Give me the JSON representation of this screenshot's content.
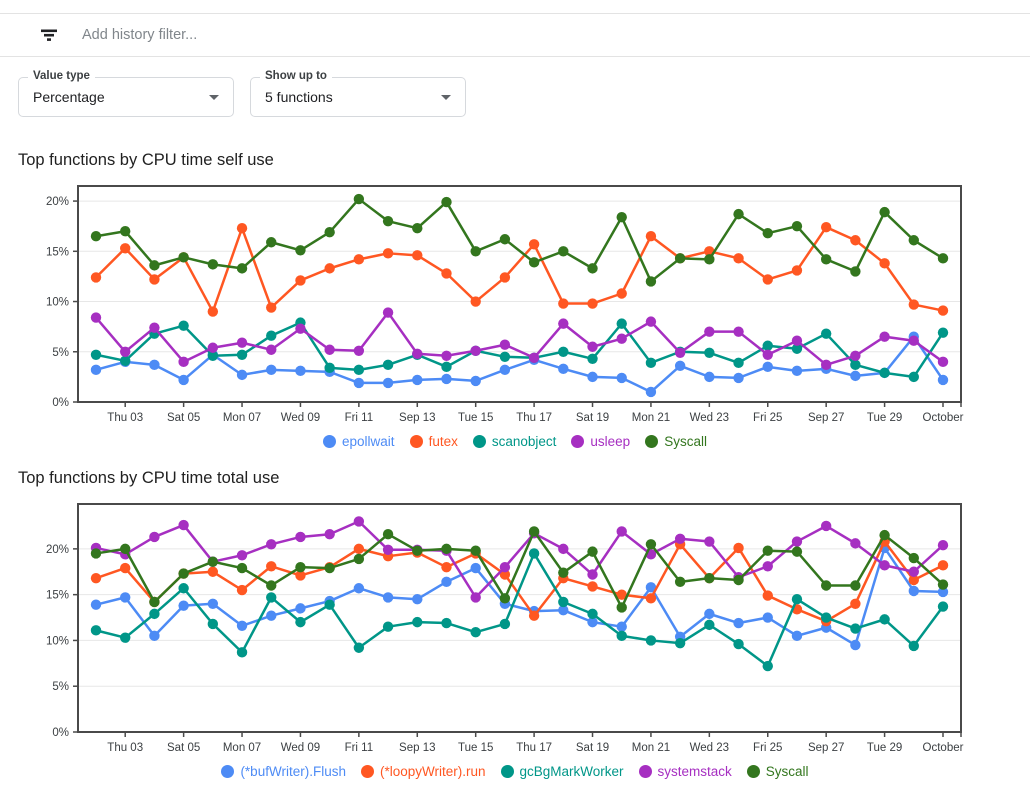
{
  "filter_bar": {
    "icon": "filter-list-icon",
    "placeholder": "Add history filter..."
  },
  "controls": {
    "value_type": {
      "label": "Value type",
      "value": "Percentage"
    },
    "show_up_to": {
      "label": "Show up to",
      "value": "5 functions"
    }
  },
  "chart_data": [
    {
      "type": "line",
      "title": "Top functions by CPU time self use",
      "x_tick_labels": [
        "Thu 03",
        "Sat 05",
        "Mon 07",
        "Wed 09",
        "Fri 11",
        "Sep 13",
        "Tue 15",
        "Thu 17",
        "Sat 19",
        "Mon 21",
        "Wed 23",
        "Fri 25",
        "Sep 27",
        "Tue 29",
        "October"
      ],
      "y_ticks": [
        0,
        5,
        10,
        15,
        20
      ],
      "y_tick_labels": [
        "0%",
        "5%",
        "10%",
        "15%",
        "20%"
      ],
      "ylim": [
        0,
        21.5
      ],
      "grid": true,
      "legend_position": "bottom",
      "series": [
        {
          "name": "epollwait",
          "color": "#4D8BF5",
          "values": [
            3.2,
            4.0,
            3.7,
            2.2,
            4.7,
            2.7,
            3.2,
            3.1,
            3.0,
            1.9,
            1.9,
            2.2,
            2.3,
            2.1,
            3.2,
            4.2,
            3.3,
            2.5,
            2.4,
            1.0,
            3.6,
            2.5,
            2.4,
            3.5,
            3.1,
            3.3,
            2.6,
            2.9,
            6.5,
            2.2
          ]
        },
        {
          "name": "futex",
          "color": "#FF5722",
          "values": [
            12.4,
            15.3,
            12.2,
            14.4,
            9.0,
            17.3,
            9.4,
            12.1,
            13.3,
            14.2,
            14.8,
            14.6,
            12.8,
            10.0,
            12.4,
            15.7,
            9.8,
            9.8,
            10.8,
            16.5,
            14.3,
            15.0,
            14.3,
            12.2,
            13.1,
            17.4,
            16.1,
            13.8,
            9.7,
            9.1
          ]
        },
        {
          "name": "scanobject",
          "color": "#009688",
          "values": [
            4.7,
            4.1,
            6.8,
            7.6,
            4.6,
            4.7,
            6.6,
            7.9,
            3.4,
            3.2,
            3.7,
            4.7,
            3.5,
            5.1,
            4.5,
            4.4,
            5.0,
            4.3,
            7.8,
            3.9,
            5.0,
            4.9,
            3.9,
            5.6,
            5.3,
            6.8,
            3.7,
            2.9,
            2.5,
            6.9
          ]
        },
        {
          "name": "usleep",
          "color": "#A62FC1",
          "values": [
            8.4,
            5.0,
            7.4,
            4.0,
            5.4,
            5.9,
            5.2,
            7.3,
            5.2,
            5.1,
            8.9,
            4.8,
            4.6,
            5.1,
            5.7,
            4.4,
            7.8,
            5.5,
            6.3,
            8.0,
            4.9,
            7.0,
            7.0,
            4.7,
            6.1,
            3.7,
            4.6,
            6.5,
            6.1,
            4.0
          ]
        },
        {
          "name": "Syscall",
          "color": "#33761E",
          "values": [
            16.5,
            17.0,
            13.6,
            14.4,
            13.7,
            13.3,
            15.9,
            15.1,
            16.9,
            20.2,
            18.0,
            17.3,
            19.9,
            15.0,
            16.2,
            13.9,
            15.0,
            13.3,
            18.4,
            12.0,
            14.3,
            14.2,
            18.7,
            16.8,
            17.5,
            14.2,
            13.0,
            18.9,
            16.1,
            14.3
          ]
        }
      ]
    },
    {
      "type": "line",
      "title": "Top functions by CPU time total use",
      "x_tick_labels": [
        "Thu 03",
        "Sat 05",
        "Mon 07",
        "Wed 09",
        "Fri 11",
        "Sep 13",
        "Tue 15",
        "Thu 17",
        "Sat 19",
        "Mon 21",
        "Wed 23",
        "Fri 25",
        "Sep 27",
        "Tue 29",
        "October"
      ],
      "y_ticks": [
        0,
        5,
        10,
        15,
        20
      ],
      "y_tick_labels": [
        "0%",
        "5%",
        "10%",
        "15%",
        "20%"
      ],
      "ylim": [
        0,
        24.9
      ],
      "grid": true,
      "legend_position": "bottom",
      "series": [
        {
          "name": "(*bufWriter).Flush",
          "color": "#4D8BF5",
          "values": [
            13.9,
            14.7,
            10.5,
            13.8,
            14.0,
            11.6,
            12.7,
            13.5,
            14.3,
            15.7,
            14.7,
            14.5,
            16.4,
            17.9,
            14.0,
            13.2,
            13.3,
            12.0,
            11.5,
            15.8,
            10.4,
            12.9,
            11.9,
            12.5,
            10.5,
            11.4,
            9.5,
            20.1,
            15.4,
            15.3
          ]
        },
        {
          "name": "(*loopyWriter).run",
          "color": "#FF5722",
          "values": [
            16.8,
            17.9,
            14.2,
            17.3,
            17.5,
            15.5,
            18.1,
            17.1,
            18.0,
            20.0,
            19.2,
            19.6,
            18.0,
            19.5,
            17.2,
            12.7,
            16.8,
            15.9,
            15.0,
            14.6,
            20.5,
            16.8,
            20.1,
            14.9,
            13.4,
            12.1,
            14.0,
            20.8,
            16.6,
            18.2
          ]
        },
        {
          "name": "gcBgMarkWorker",
          "color": "#009688",
          "values": [
            11.1,
            10.3,
            12.9,
            15.7,
            11.8,
            8.7,
            14.7,
            12.0,
            13.9,
            9.2,
            11.5,
            12.0,
            11.9,
            10.9,
            11.8,
            19.5,
            14.2,
            12.9,
            10.5,
            10.0,
            9.7,
            11.7,
            9.6,
            7.2,
            14.5,
            12.5,
            11.3,
            12.3,
            9.4,
            13.7
          ]
        },
        {
          "name": "systemstack",
          "color": "#A62FC1",
          "values": [
            20.1,
            19.4,
            21.3,
            22.6,
            18.6,
            19.3,
            20.5,
            21.3,
            21.6,
            23.0,
            19.9,
            19.9,
            19.8,
            14.7,
            18.0,
            21.7,
            20.0,
            17.2,
            21.9,
            19.4,
            21.1,
            20.8,
            16.9,
            18.1,
            20.8,
            22.5,
            20.6,
            18.2,
            17.5,
            20.4
          ]
        },
        {
          "name": "Syscall",
          "color": "#33761E",
          "values": [
            19.5,
            20.0,
            14.2,
            17.3,
            18.6,
            17.9,
            16.0,
            18.0,
            17.9,
            18.9,
            21.6,
            19.8,
            20.0,
            19.8,
            14.6,
            21.9,
            17.4,
            19.7,
            13.6,
            20.5,
            16.4,
            16.8,
            16.6,
            19.8,
            19.7,
            16.0,
            16.0,
            21.5,
            19.0,
            16.1
          ]
        }
      ]
    }
  ],
  "colors": {
    "axis": "#4a4a4a",
    "grid": "#e7e7e7",
    "tick_text": "#3c4043",
    "divider": "#e3e3e3"
  }
}
